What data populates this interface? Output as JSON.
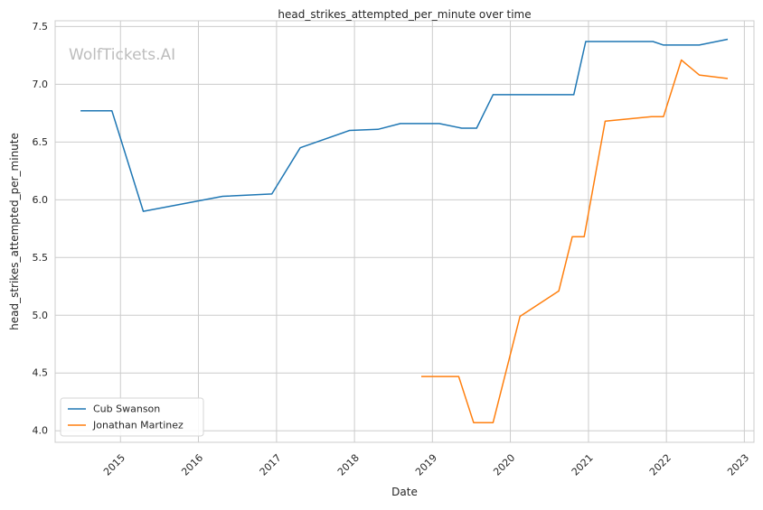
{
  "chart_data": {
    "type": "line",
    "title": "head_strikes_attempted_per_minute over time",
    "xlabel": "Date",
    "ylabel": "head_strikes_attempted_per_minute",
    "watermark": "WolfTickets.AI",
    "x_axis_kind": "date",
    "xlim": [
      "2014-03-01",
      "2023-02-15"
    ],
    "ylim": [
      3.9,
      7.55
    ],
    "x_ticks": [
      "2015",
      "2016",
      "2017",
      "2018",
      "2019",
      "2020",
      "2021",
      "2022",
      "2023"
    ],
    "y_ticks": [
      "4.0",
      "4.5",
      "5.0",
      "5.5",
      "6.0",
      "6.5",
      "7.0",
      "7.5"
    ],
    "grid": true,
    "legend_position": "lower-left",
    "series": [
      {
        "name": "Cub Swanson",
        "color": "#1f77b4",
        "points": [
          [
            "2014-06-28",
            6.77
          ],
          [
            "2014-11-22",
            6.77
          ],
          [
            "2015-04-18",
            5.9
          ],
          [
            "2016-04-23",
            6.03
          ],
          [
            "2016-12-10",
            6.05
          ],
          [
            "2017-04-22",
            6.45
          ],
          [
            "2017-12-09",
            6.6
          ],
          [
            "2018-04-21",
            6.61
          ],
          [
            "2018-08-04",
            6.66
          ],
          [
            "2019-02-02",
            6.66
          ],
          [
            "2019-05-18",
            6.62
          ],
          [
            "2019-07-27",
            6.62
          ],
          [
            "2019-10-12",
            6.91
          ],
          [
            "2020-10-24",
            6.91
          ],
          [
            "2020-12-19",
            7.37
          ],
          [
            "2021-04-17",
            7.37
          ],
          [
            "2021-10-30",
            7.37
          ],
          [
            "2021-12-18",
            7.34
          ],
          [
            "2022-06-04",
            7.34
          ],
          [
            "2022-10-15",
            7.39
          ]
        ]
      },
      {
        "name": "Jonathan Martinez",
        "color": "#ff7f0e",
        "points": [
          [
            "2018-11-10",
            4.47
          ],
          [
            "2019-05-04",
            4.47
          ],
          [
            "2019-07-13",
            4.07
          ],
          [
            "2019-10-12",
            4.07
          ],
          [
            "2020-02-15",
            4.99
          ],
          [
            "2020-08-15",
            5.21
          ],
          [
            "2020-10-17",
            5.68
          ],
          [
            "2020-12-12",
            5.68
          ],
          [
            "2021-03-20",
            6.68
          ],
          [
            "2021-10-23",
            6.72
          ],
          [
            "2021-12-18",
            6.72
          ],
          [
            "2022-03-12",
            7.21
          ],
          [
            "2022-06-04",
            7.08
          ],
          [
            "2022-10-15",
            7.05
          ]
        ]
      }
    ]
  }
}
